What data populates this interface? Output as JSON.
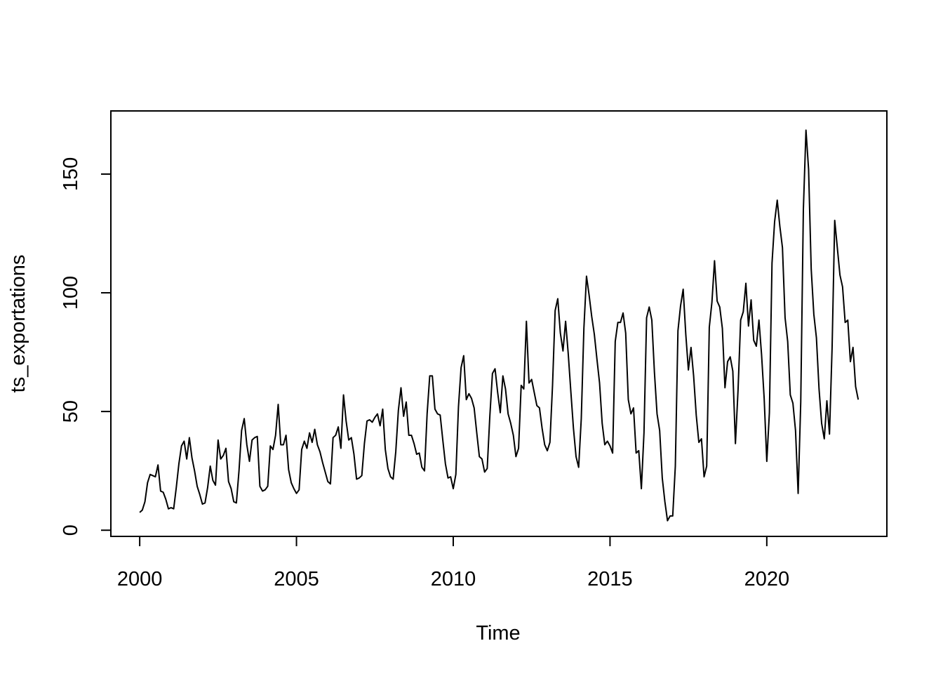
{
  "chart_data": {
    "type": "line",
    "title": "",
    "xlabel": "Time",
    "ylabel": "ts_exportations",
    "xlim": [
      1999.08,
      2023.83
    ],
    "ylim": [
      -2.6,
      176.6
    ],
    "x_ticks": [
      2000,
      2005,
      2010,
      2015,
      2020
    ],
    "y_ticks": [
      0,
      50,
      100,
      150
    ],
    "grid": false,
    "legend": "none",
    "line_color": "#000000",
    "start": 2000,
    "frequency": 12,
    "series": [
      {
        "values": [
          7.5,
          8.5,
          12,
          20,
          23.5,
          23,
          22.5,
          27.5,
          16.5,
          16,
          13,
          9,
          9.5,
          9,
          18,
          28,
          35.5,
          37.5,
          30,
          39,
          30.5,
          25,
          18.5,
          15,
          11,
          11.5,
          18,
          27,
          21,
          19,
          38,
          30,
          31.5,
          34.5,
          20.5,
          17.5,
          12,
          11.5,
          25,
          42,
          47,
          36,
          29,
          38,
          39,
          39.5,
          18.5,
          16.5,
          17,
          18.5,
          35.5,
          34,
          40,
          53,
          36,
          36,
          40,
          25.5,
          20,
          17.5,
          15.5,
          17,
          34,
          37.5,
          34.5,
          41,
          37,
          42.5,
          36,
          33,
          28.5,
          24.5,
          20.5,
          19.5,
          39,
          40,
          43.5,
          34.5,
          57,
          46,
          38,
          39,
          32,
          21.5,
          22,
          23,
          36.5,
          46,
          46.5,
          45.5,
          47.5,
          49,
          44,
          51,
          34,
          26,
          22.5,
          21.5,
          33,
          50.5,
          60,
          48,
          54,
          40,
          40,
          36.5,
          32,
          32.5,
          26.5,
          25,
          49,
          65,
          65,
          51,
          49,
          48.5,
          38,
          28,
          22,
          22.5,
          17.5,
          23.5,
          52,
          68.5,
          73.5,
          55,
          57.5,
          55.5,
          51.5,
          41,
          31,
          30,
          24.5,
          26,
          48,
          66,
          68,
          58,
          49.5,
          65,
          59.5,
          49,
          45,
          40,
          31,
          34.5,
          61,
          59.5,
          88,
          62,
          63.5,
          58,
          52.5,
          51.5,
          43,
          36,
          33.5,
          37,
          61,
          92.5,
          97.5,
          83,
          75.5,
          88,
          74.5,
          58.5,
          43,
          31,
          26.5,
          47,
          85,
          107,
          99,
          90,
          82.5,
          72,
          62,
          45,
          36,
          37.5,
          35.5,
          32.5,
          79.5,
          87.5,
          87.5,
          91.5,
          83,
          55,
          49,
          51.5,
          32.5,
          33.5,
          17.5,
          41,
          89.5,
          94,
          88.5,
          66.5,
          49,
          42,
          22,
          12,
          4,
          6,
          6,
          27,
          84,
          94.5,
          101.5,
          82.5,
          67.5,
          77,
          65,
          48.5,
          37,
          38.5,
          22.5,
          27,
          85.5,
          96,
          113.5,
          96.5,
          94,
          85,
          60,
          71,
          73,
          67,
          36.5,
          59,
          88.5,
          92,
          104,
          86,
          97,
          80,
          77.5,
          88.5,
          74,
          55.5,
          29,
          49.5,
          112.5,
          130,
          139,
          128,
          119,
          89.5,
          79.5,
          57,
          53.5,
          42,
          15.5,
          54,
          135,
          168.5,
          152,
          110,
          91,
          81,
          59.5,
          45,
          38.5,
          54.5,
          40.5,
          77,
          130.5,
          119,
          107.5,
          102.5,
          87.5,
          88.5,
          71,
          77,
          60.5,
          55
        ]
      }
    ]
  }
}
